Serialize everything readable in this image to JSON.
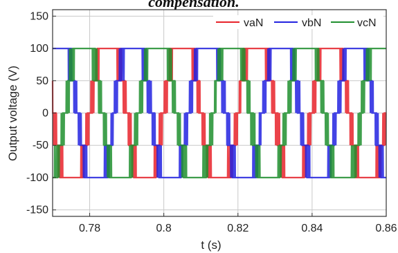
{
  "chart_data": {
    "type": "line",
    "title": "compensation.",
    "xlabel": "t (s)",
    "ylabel": "Output voltage (V)",
    "xlim": [
      0.77,
      0.86
    ],
    "ylim": [
      -160,
      160
    ],
    "xticks": [
      0.78,
      0.8,
      0.82,
      0.84,
      0.86
    ],
    "xtick_labels": [
      "0.78",
      "0.8",
      "0.82",
      "0.84",
      "0.86"
    ],
    "yticks": [
      150,
      100,
      50,
      0,
      -50,
      -100,
      -150
    ],
    "ytick_labels": [
      "150",
      "100",
      "50",
      "0",
      "-50",
      "-100",
      "-150"
    ],
    "grid": true,
    "legend_position": "top-right",
    "series": [
      {
        "name": "vaN",
        "color": "#e8222a",
        "phase_deg": 0,
        "period_s": 0.02,
        "levels": [
          100,
          50,
          0,
          -50,
          -100
        ]
      },
      {
        "name": "vbN",
        "color": "#2222e0",
        "phase_deg": -120,
        "period_s": 0.02,
        "levels": [
          100,
          50,
          0,
          -50,
          -100
        ]
      },
      {
        "name": "vcN",
        "color": "#1f8f2e",
        "phase_deg": 120,
        "period_s": 0.02,
        "levels": [
          100,
          50,
          0,
          -50,
          -100
        ]
      }
    ]
  }
}
